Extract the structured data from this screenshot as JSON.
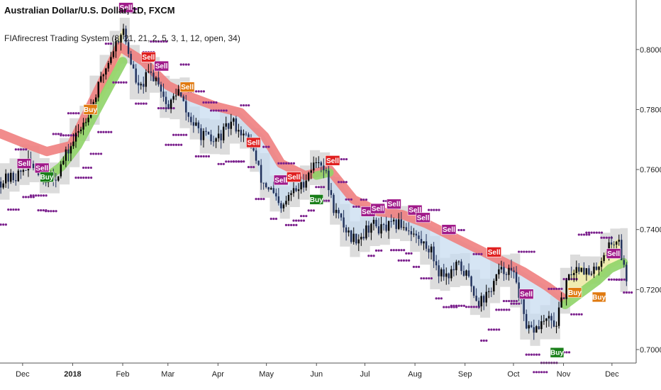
{
  "chart_data": {
    "type": "candlestick",
    "title": "Australian Dollar/U.S. Dollar, 1D, FXCM",
    "indicator_label": "FIAfirecrest Trading System (8, 21, 21, 2, 5, 3, 1, 12, open, 34)",
    "y_ticks": [
      "0.80000",
      "0.78000",
      "0.76000",
      "0.74000",
      "0.72000",
      "0.70000"
    ],
    "ylim": [
      0.6955,
      0.8165
    ],
    "x_labels": [
      {
        "label": "Dec",
        "day": 0,
        "bold": false
      },
      {
        "label": "2018",
        "day": 31,
        "bold": true
      },
      {
        "label": "Feb",
        "day": 62,
        "bold": false
      },
      {
        "label": "Mar",
        "day": 90,
        "bold": false
      },
      {
        "label": "Apr",
        "day": 121,
        "bold": false
      },
      {
        "label": "May",
        "day": 151,
        "bold": false
      },
      {
        "label": "Jun",
        "day": 182,
        "bold": false
      },
      {
        "label": "Jul",
        "day": 212,
        "bold": false
      },
      {
        "label": "Aug",
        "day": 243,
        "bold": false
      },
      {
        "label": "Sep",
        "day": 274,
        "bold": false
      },
      {
        "label": "Oct",
        "day": 304,
        "bold": false
      },
      {
        "label": "Nov",
        "day": 335,
        "bold": false
      },
      {
        "label": "Dec",
        "day": 365,
        "bold": false
      }
    ],
    "xlim": [
      -14,
      380
    ],
    "price_path": [
      [
        -14,
        0.756
      ],
      [
        -3,
        0.758
      ],
      [
        4,
        0.762
      ],
      [
        10,
        0.76
      ],
      [
        15,
        0.757
      ],
      [
        20,
        0.757
      ],
      [
        28,
        0.766
      ],
      [
        36,
        0.774
      ],
      [
        44,
        0.783
      ],
      [
        50,
        0.792
      ],
      [
        56,
        0.8
      ],
      [
        62,
        0.807
      ],
      [
        66,
        0.798
      ],
      [
        72,
        0.786
      ],
      [
        78,
        0.792
      ],
      [
        84,
        0.79
      ],
      [
        90,
        0.78
      ],
      [
        96,
        0.787
      ],
      [
        102,
        0.778
      ],
      [
        110,
        0.772
      ],
      [
        118,
        0.769
      ],
      [
        124,
        0.772
      ],
      [
        130,
        0.776
      ],
      [
        136,
        0.772
      ],
      [
        142,
        0.768
      ],
      [
        148,
        0.756
      ],
      [
        154,
        0.753
      ],
      [
        160,
        0.746
      ],
      [
        166,
        0.752
      ],
      [
        172,
        0.754
      ],
      [
        178,
        0.76
      ],
      [
        184,
        0.764
      ],
      [
        188,
        0.758
      ],
      [
        192,
        0.748
      ],
      [
        198,
        0.742
      ],
      [
        204,
        0.737
      ],
      [
        210,
        0.738
      ],
      [
        216,
        0.742
      ],
      [
        222,
        0.74
      ],
      [
        228,
        0.741
      ],
      [
        234,
        0.742
      ],
      [
        240,
        0.74
      ],
      [
        246,
        0.736
      ],
      [
        252,
        0.734
      ],
      [
        258,
        0.726
      ],
      [
        264,
        0.725
      ],
      [
        270,
        0.728
      ],
      [
        276,
        0.724
      ],
      [
        282,
        0.716
      ],
      [
        288,
        0.718
      ],
      [
        294,
        0.725
      ],
      [
        300,
        0.727
      ],
      [
        306,
        0.723
      ],
      [
        312,
        0.706
      ],
      [
        318,
        0.707
      ],
      [
        324,
        0.71
      ],
      [
        330,
        0.708
      ],
      [
        336,
        0.72
      ],
      [
        340,
        0.726
      ],
      [
        346,
        0.728
      ],
      [
        352,
        0.724
      ],
      [
        358,
        0.73
      ],
      [
        364,
        0.735
      ],
      [
        369,
        0.737
      ],
      [
        372,
        0.728
      ],
      [
        375,
        0.722
      ]
    ],
    "red_band": [
      [
        -14,
        0.772
      ],
      [
        0,
        0.769
      ],
      [
        15,
        0.766
      ],
      [
        30,
        0.768
      ],
      [
        60,
        0.801
      ],
      [
        75,
        0.796
      ],
      [
        90,
        0.788
      ],
      [
        105,
        0.784
      ],
      [
        120,
        0.781
      ],
      [
        135,
        0.779
      ],
      [
        150,
        0.771
      ],
      [
        160,
        0.762
      ],
      [
        175,
        0.758
      ],
      [
        190,
        0.76
      ],
      [
        205,
        0.75
      ],
      [
        220,
        0.746
      ],
      [
        235,
        0.745
      ],
      [
        250,
        0.742
      ],
      [
        265,
        0.738
      ],
      [
        280,
        0.734
      ],
      [
        295,
        0.73
      ],
      [
        310,
        0.726
      ],
      [
        325,
        0.721
      ],
      [
        335,
        0.717
      ]
    ],
    "green_band": [
      [
        14,
        0.757
      ],
      [
        24,
        0.761
      ],
      [
        34,
        0.768
      ],
      [
        44,
        0.778
      ],
      [
        54,
        0.788
      ],
      [
        62,
        0.796
      ],
      [
        182,
        0.758
      ],
      [
        190,
        0.759
      ],
      [
        336,
        0.715
      ],
      [
        346,
        0.719
      ],
      [
        356,
        0.723
      ],
      [
        364,
        0.727
      ],
      [
        372,
        0.729
      ]
    ],
    "signals": [
      {
        "label": "Sell",
        "day": 1,
        "price": 0.762,
        "color": "#a01b8a"
      },
      {
        "label": "Sell",
        "day": 12,
        "price": 0.7605,
        "color": "#a01b8a"
      },
      {
        "label": "Buy",
        "day": 15,
        "price": 0.7575,
        "color": "#1a7f1a"
      },
      {
        "label": "Buy",
        "day": 42,
        "price": 0.78,
        "color": "#e07a10"
      },
      {
        "label": "Sell",
        "day": 64,
        "price": 0.814,
        "color": "#a01b8a"
      },
      {
        "label": "Sell",
        "day": 78,
        "price": 0.7975,
        "color": "#e02020"
      },
      {
        "label": "Sell",
        "day": 86,
        "price": 0.7945,
        "color": "#a01b8a"
      },
      {
        "label": "Sell",
        "day": 102,
        "price": 0.7875,
        "color": "#e07a10"
      },
      {
        "label": "Sell",
        "day": 143,
        "price": 0.769,
        "color": "#e02020"
      },
      {
        "label": "Sell",
        "day": 160,
        "price": 0.7565,
        "color": "#a01b8a"
      },
      {
        "label": "Sell",
        "day": 168,
        "price": 0.7575,
        "color": "#e02020"
      },
      {
        "label": "Buy",
        "day": 182,
        "price": 0.75,
        "color": "#1a7f1a"
      },
      {
        "label": "Sell",
        "day": 192,
        "price": 0.763,
        "color": "#e02020"
      },
      {
        "label": "Sell",
        "day": 214,
        "price": 0.746,
        "color": "#a01b8a"
      },
      {
        "label": "Sell",
        "day": 220,
        "price": 0.747,
        "color": "#a01b8a"
      },
      {
        "label": "Sell",
        "day": 230,
        "price": 0.7485,
        "color": "#a01b8a"
      },
      {
        "label": "Sell",
        "day": 243,
        "price": 0.7465,
        "color": "#a01b8a"
      },
      {
        "label": "Sell",
        "day": 248,
        "price": 0.744,
        "color": "#a01b8a"
      },
      {
        "label": "Sell",
        "day": 264,
        "price": 0.74,
        "color": "#a01b8a"
      },
      {
        "label": "Sell",
        "day": 292,
        "price": 0.7325,
        "color": "#e02020"
      },
      {
        "label": "Sell",
        "day": 312,
        "price": 0.7185,
        "color": "#a01b8a"
      },
      {
        "label": "Buy",
        "day": 331,
        "price": 0.699,
        "color": "#1a7f1a"
      },
      {
        "label": "Buy",
        "day": 342,
        "price": 0.719,
        "color": "#e07a10"
      },
      {
        "label": "Buy",
        "day": 357,
        "price": 0.7175,
        "color": "#e07a10"
      },
      {
        "label": "Sell",
        "day": 366,
        "price": 0.732,
        "color": "#a01b8a"
      }
    ]
  },
  "colors": {
    "candle_up": "#000000",
    "candle_down": "#1f2f5a",
    "red_band": "#f08080",
    "green_band": "#8fd468",
    "yellow_fill": "#f5f0a0",
    "blue_fill": "#c8dcf0",
    "gray_fill": "#d6d6d6",
    "dots": "#7a1f8c",
    "axis_line": "#555555"
  }
}
